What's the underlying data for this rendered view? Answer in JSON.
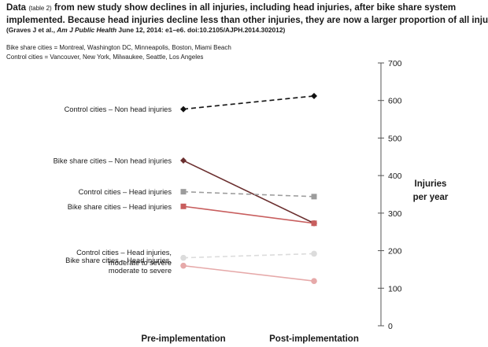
{
  "header": {
    "line1_a": "Data ",
    "line1_b": "(table 2)",
    "line1_c": " from new study show declines in all injuries, including head injuries, after bike share system",
    "line2": "implemented. Because head injuries decline less than other injuries, they are now a larger proportion of all injuries.",
    "citation_a": "(Graves J et al., ",
    "citation_journal": "Am J Public Health",
    "citation_b": " June 12, 2014: e1–e6. doi:10.2105/AJPH.2014.302012)"
  },
  "legend_notes": {
    "bike_share": "Bike share cities = Montreal, Washington DC, Minneapolis, Boston, Miami Beach",
    "control": "Control cities = Vancouver, New York, Milwaukee, Seattle, Los Angeles"
  },
  "chart_data": {
    "type": "line",
    "categories": [
      "Pre-implementation",
      "Post-implementation"
    ],
    "ylabel_lines": [
      "Injuries",
      "per year"
    ],
    "ylim": [
      0,
      700
    ],
    "yticks": [
      0,
      100,
      200,
      300,
      400,
      500,
      600,
      700
    ],
    "grid": false,
    "series": [
      {
        "label_lines": [
          "Control cities – Non head injuries"
        ],
        "values": [
          577,
          612
        ],
        "color": "#111111",
        "marker_color": "#111111",
        "dashed": true,
        "marker": "diamond"
      },
      {
        "label_lines": [
          "Bike share cities – Non head injuries"
        ],
        "values": [
          440,
          273
        ],
        "color": "#6b2f2f",
        "marker_color": "#6b2f2f",
        "dashed": false,
        "marker": "diamond"
      },
      {
        "label_lines": [
          "Control cities – Head injuries"
        ],
        "values": [
          357,
          344
        ],
        "color": "#9c9c9c",
        "marker_color": "#9c9c9c",
        "dashed": true,
        "marker": "square"
      },
      {
        "label_lines": [
          "Bike share cities – Head injuries"
        ],
        "values": [
          318,
          273
        ],
        "color": "#c85e5e",
        "marker_color": "#c85e5e",
        "dashed": false,
        "marker": "square"
      },
      {
        "label_lines": [
          "Control cities – Head injuries,",
          "moderate to severe"
        ],
        "values": [
          181,
          192
        ],
        "color": "#dcdcdc",
        "marker_color": "#dcdcdc",
        "dashed": true,
        "marker": "circle"
      },
      {
        "label_lines": [
          "Bike share cities – Head injuries,",
          "moderate to severe"
        ],
        "values": [
          160,
          119
        ],
        "color": "#e6a9a9",
        "marker_color": "#e6a9a9",
        "dashed": false,
        "marker": "circle"
      }
    ]
  }
}
